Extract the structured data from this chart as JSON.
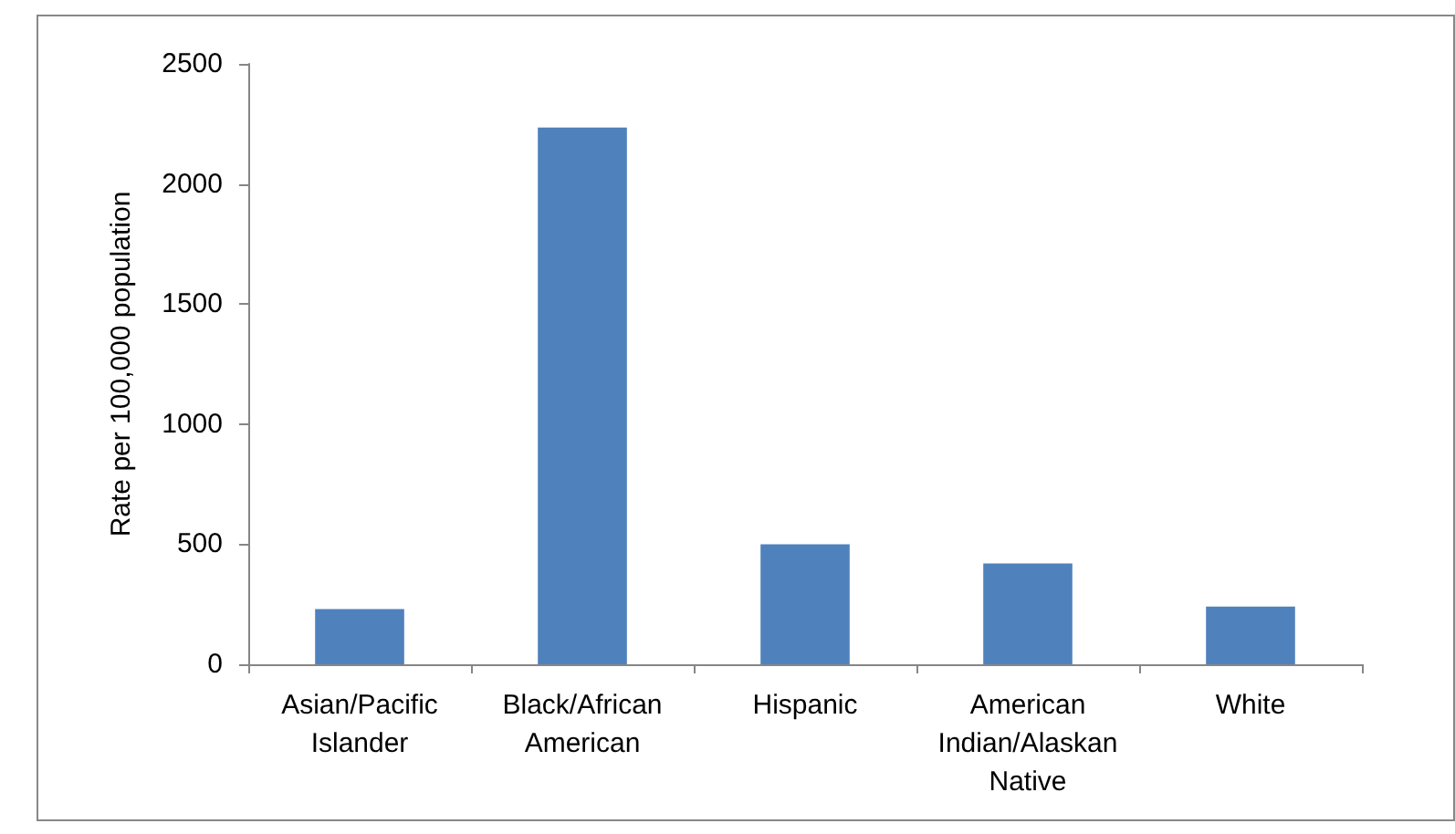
{
  "chart_data": {
    "type": "bar",
    "ylabel": "Rate per 100,000 population",
    "categories": [
      "Asian/Pacific Islander",
      "Black/African American",
      "Hispanic",
      "American Indian/Alaskan Native",
      "White"
    ],
    "values": [
      230,
      2235,
      500,
      420,
      240
    ],
    "color": "#4f81bd",
    "ylim": [
      0,
      2500
    ],
    "yticks": [
      0,
      500,
      1000,
      1500,
      2000,
      2500
    ],
    "grid": false
  }
}
